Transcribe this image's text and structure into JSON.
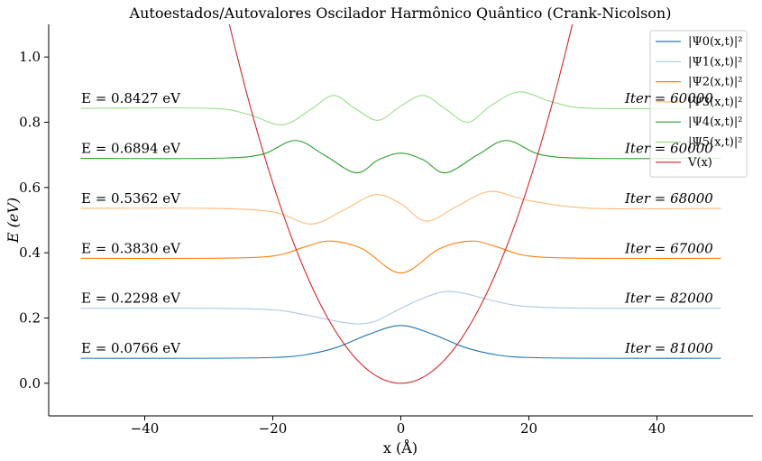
{
  "chart_data": {
    "type": "line",
    "title": "Autoestados/Autovalores Oscilador Harmônico Quântico (Crank-Nicolson)",
    "xlabel": "x (Å)",
    "ylabel": "E (eV)",
    "xlim": [
      -55,
      55
    ],
    "ylim": [
      -0.1,
      1.1
    ],
    "xticks": [
      -40,
      -20,
      0,
      20,
      40
    ],
    "xtick_labels": [
      "−40",
      "−20",
      "0",
      "20",
      "40"
    ],
    "yticks": [
      0.0,
      0.2,
      0.4,
      0.6,
      0.8,
      1.0
    ],
    "ytick_labels": [
      "0.0",
      "0.2",
      "0.4",
      "0.6",
      "0.8",
      "1.0"
    ],
    "grid": false,
    "legend_position": "top-right",
    "potential": {
      "name": "V(x)",
      "color": "#d62728",
      "x": [
        -27,
        -20,
        -15,
        -10,
        -5,
        0,
        5,
        10,
        15,
        20,
        27
      ],
      "y": [
        1.118,
        0.613,
        0.345,
        0.153,
        0.038,
        0.0,
        0.038,
        0.153,
        0.345,
        0.613,
        1.118
      ]
    },
    "series": [
      {
        "name": "|Ψ0(x,t)|²",
        "color": "#1f77b4",
        "energy": 0.0766,
        "energy_label": "E = 0.0766 eV",
        "iter_label": "Iter = 81000",
        "x": [
          -50,
          -30,
          -20,
          -15,
          -10,
          -5,
          0,
          5,
          10,
          15,
          20,
          30,
          50
        ],
        "y": [
          0.0766,
          0.0766,
          0.079,
          0.087,
          0.11,
          0.15,
          0.177,
          0.15,
          0.11,
          0.087,
          0.079,
          0.0766,
          0.0766
        ]
      },
      {
        "name": "|Ψ1(x,t)|²",
        "color": "#aec7e8",
        "energy": 0.2298,
        "energy_label": "E = 0.2298 eV",
        "iter_label": "Iter = 82000",
        "x": [
          -50,
          -30,
          -20,
          -15,
          -10,
          -7,
          -4,
          0,
          4,
          7,
          10,
          15,
          20,
          30,
          50
        ],
        "y": [
          0.2298,
          0.2298,
          0.225,
          0.21,
          0.19,
          0.182,
          0.19,
          0.2298,
          0.265,
          0.281,
          0.275,
          0.25,
          0.235,
          0.2298,
          0.2298
        ]
      },
      {
        "name": "|Ψ2(x,t)|²",
        "color": "#ff7f0e",
        "energy": 0.383,
        "energy_label": "E = 0.3830 eV",
        "iter_label": "Iter = 67000",
        "x": [
          -50,
          -30,
          -20,
          -15,
          -11,
          -6,
          0,
          6,
          11,
          15,
          20,
          30,
          50
        ],
        "y": [
          0.383,
          0.383,
          0.39,
          0.418,
          0.436,
          0.412,
          0.338,
          0.412,
          0.436,
          0.418,
          0.39,
          0.383,
          0.383
        ]
      },
      {
        "name": "|Ψ3(x,t)|²",
        "color": "#ffbb78",
        "energy": 0.5362,
        "energy_label": "E = 0.5362 eV",
        "iter_label": "Iter = 68000",
        "x": [
          -50,
          -30,
          -20,
          -14,
          -9,
          -4,
          0,
          4,
          9,
          14,
          20,
          30,
          50
        ],
        "y": [
          0.5362,
          0.5362,
          0.525,
          0.488,
          0.53,
          0.578,
          0.55,
          0.497,
          0.545,
          0.588,
          0.56,
          0.5362,
          0.5362
        ]
      },
      {
        "name": "|Ψ4(x,t)|²",
        "color": "#2ca02c",
        "energy": 0.6894,
        "energy_label": "E = 0.6894 eV",
        "iter_label": "Iter = 60000",
        "x": [
          -50,
          -30,
          -22,
          -16.5,
          -12,
          -7,
          -3.5,
          0,
          3.5,
          7,
          12,
          16.5,
          22,
          30,
          50
        ],
        "y": [
          0.6894,
          0.6894,
          0.7,
          0.744,
          0.7,
          0.645,
          0.685,
          0.705,
          0.685,
          0.645,
          0.7,
          0.744,
          0.7,
          0.6894,
          0.6894
        ]
      },
      {
        "name": "|Ψ5(x,t)|²",
        "color": "#98df8a",
        "energy": 0.8427,
        "energy_label": "E = 0.8427 eV",
        "iter_label": "Iter = 60000",
        "x": [
          -50,
          -30,
          -24,
          -18.5,
          -14,
          -10.5,
          -7,
          -3.5,
          0,
          3.5,
          7,
          10.5,
          14,
          18.5,
          24,
          30,
          50
        ],
        "y": [
          0.8427,
          0.8427,
          0.825,
          0.792,
          0.84,
          0.882,
          0.84,
          0.806,
          0.85,
          0.882,
          0.84,
          0.8,
          0.85,
          0.893,
          0.86,
          0.8427,
          0.8427
        ]
      }
    ],
    "legend": [
      "|Ψ0(x,t)|²",
      "|Ψ1(x,t)|²",
      "|Ψ2(x,t)|²",
      "|Ψ3(x,t)|²",
      "|Ψ4(x,t)|²",
      "|Ψ5(x,t)|²",
      "V(x)"
    ]
  }
}
